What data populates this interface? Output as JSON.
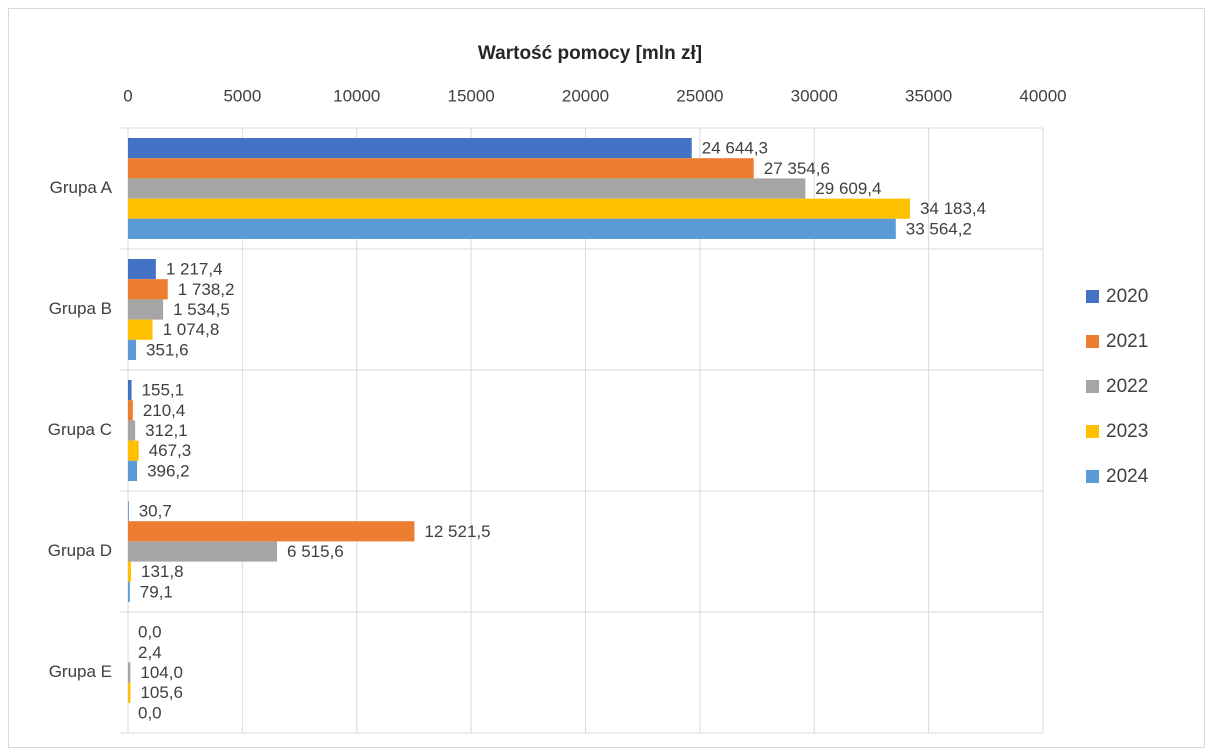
{
  "chart_data": {
    "type": "bar",
    "orientation": "horizontal",
    "title": "Wartość pomocy [mln zł]",
    "categories": [
      "Grupa A",
      "Grupa B",
      "Grupa C",
      "Grupa D",
      "Grupa E"
    ],
    "series": [
      {
        "name": "2020",
        "color": "#4472c4",
        "values": [
          24644.3,
          1217.4,
          155.1,
          30.7,
          0.0
        ],
        "value_labels": [
          "24 644,3",
          "1 217,4",
          "155,1",
          "30,7",
          "0,0"
        ]
      },
      {
        "name": "2021",
        "color": "#ed7d31",
        "values": [
          27354.6,
          1738.2,
          210.4,
          12521.5,
          2.4
        ],
        "value_labels": [
          "27 354,6",
          "1 738,2",
          "210,4",
          "12 521,5",
          "2,4"
        ]
      },
      {
        "name": "2022",
        "color": "#a5a5a5",
        "values": [
          29609.4,
          1534.5,
          312.1,
          6515.6,
          104.0
        ],
        "value_labels": [
          "29 609,4",
          "1 534,5",
          "312,1",
          "6 515,6",
          "104,0"
        ]
      },
      {
        "name": "2023",
        "color": "#ffc000",
        "values": [
          34183.4,
          1074.8,
          467.3,
          131.8,
          105.6
        ],
        "value_labels": [
          "34 183,4",
          "1 074,8",
          "467,3",
          "131,8",
          "105,6"
        ]
      },
      {
        "name": "2024",
        "color": "#5b9bd5",
        "values": [
          33564.2,
          351.6,
          396.2,
          79.1,
          0.0
        ],
        "value_labels": [
          "33 564,2",
          "351,6",
          "396,2",
          "79,1",
          "0,0"
        ]
      }
    ],
    "xlim": [
      0,
      40000
    ],
    "xticks": [
      0,
      5000,
      10000,
      15000,
      20000,
      25000,
      30000,
      35000,
      40000
    ],
    "grid": true,
    "legend": "right"
  }
}
